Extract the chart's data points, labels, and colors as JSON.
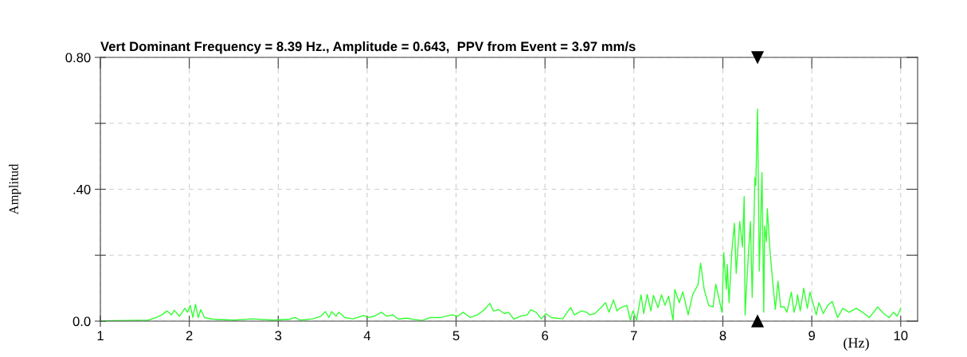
{
  "chart_data": {
    "type": "line",
    "title": "Vert Dominant Frequency = 8.39 Hz., Amplitude = 0.643,  PPV from Event = 3.97 mm/s",
    "xlabel": "(Hz)",
    "ylabel": "Amplitud",
    "series": [
      {
        "color": "#33ff33",
        "x": [
          1.0,
          1.3,
          1.54,
          1.63,
          1.69,
          1.75,
          1.8,
          1.83,
          1.89,
          1.95,
          1.98,
          2.01,
          2.04,
          2.07,
          2.1,
          2.13,
          2.17,
          2.26,
          2.5,
          2.71,
          2.95,
          3.13,
          3.19,
          3.25,
          3.39,
          3.48,
          3.53,
          3.57,
          3.6,
          3.65,
          3.68,
          3.75,
          3.84,
          3.96,
          4.02,
          4.08,
          4.16,
          4.22,
          4.29,
          4.35,
          4.44,
          4.53,
          4.62,
          4.71,
          4.83,
          4.95,
          5.02,
          5.08,
          5.16,
          5.24,
          5.32,
          5.38,
          5.42,
          5.48,
          5.54,
          5.59,
          5.65,
          5.72,
          5.8,
          5.84,
          5.9,
          5.96,
          6.01,
          6.07,
          6.2,
          6.26,
          6.29,
          6.33,
          6.41,
          6.47,
          6.5,
          6.56,
          6.63,
          6.68,
          6.72,
          6.77,
          6.81,
          6.84,
          6.92,
          6.96,
          6.99,
          7.03,
          7.08,
          7.11,
          7.15,
          7.19,
          7.22,
          7.27,
          7.31,
          7.35,
          7.39,
          7.44,
          7.46,
          7.51,
          7.55,
          7.61,
          7.66,
          7.72,
          7.75,
          7.79,
          7.84,
          7.89,
          7.92,
          7.96,
          7.99,
          8.01,
          8.04,
          8.05,
          8.07,
          8.1,
          8.13,
          8.15,
          8.19,
          8.22,
          8.24,
          8.25,
          8.28,
          8.31,
          8.33,
          8.36,
          8.37,
          8.39,
          8.41,
          8.44,
          8.46,
          8.47,
          8.49,
          8.5,
          8.53,
          8.56,
          8.59,
          8.62,
          8.65,
          8.69,
          8.72,
          8.77,
          8.8,
          8.83,
          8.84,
          8.87,
          8.91,
          8.95,
          8.98,
          9.02,
          9.05,
          9.08,
          9.13,
          9.18,
          9.23,
          9.29,
          9.35,
          9.42,
          9.5,
          9.57,
          9.65,
          9.74,
          9.81,
          9.87,
          9.92,
          9.96,
          10.0
        ],
        "values": [
          0.001,
          0.002,
          0.003,
          0.011,
          0.019,
          0.031,
          0.019,
          0.033,
          0.015,
          0.039,
          0.027,
          0.048,
          0.011,
          0.051,
          0.011,
          0.035,
          0.011,
          0.006,
          0.003,
          0.007,
          0.003,
          0.006,
          0.011,
          0.003,
          0.007,
          0.015,
          0.029,
          0.011,
          0.029,
          0.015,
          0.027,
          0.011,
          0.007,
          0.017,
          0.011,
          0.015,
          0.027,
          0.015,
          0.019,
          0.006,
          0.009,
          0.005,
          0.002,
          0.011,
          0.011,
          0.019,
          0.015,
          0.027,
          0.011,
          0.019,
          0.035,
          0.054,
          0.031,
          0.035,
          0.023,
          0.027,
          0.006,
          0.015,
          0.019,
          0.035,
          0.027,
          0.007,
          0.023,
          0.011,
          0.007,
          0.031,
          0.041,
          0.019,
          0.031,
          0.027,
          0.019,
          0.023,
          0.041,
          0.056,
          0.027,
          0.064,
          0.031,
          0.039,
          0.048,
          0.003,
          0.031,
          0.003,
          0.08,
          0.023,
          0.081,
          0.031,
          0.078,
          0.041,
          0.08,
          0.048,
          0.076,
          0.003,
          0.096,
          0.056,
          0.089,
          0.019,
          0.08,
          0.11,
          0.176,
          0.096,
          0.048,
          0.043,
          0.112,
          0.064,
          0.027,
          0.208,
          0.097,
          0.172,
          0.056,
          0.208,
          0.297,
          0.145,
          0.302,
          0.225,
          0.378,
          0.019,
          0.169,
          0.302,
          0.072,
          0.435,
          0.411,
          0.643,
          0.152,
          0.45,
          0.027,
          0.289,
          0.241,
          0.341,
          0.212,
          0.121,
          0.036,
          0.121,
          0.043,
          0.043,
          0.027,
          0.088,
          0.027,
          0.056,
          0.08,
          0.031,
          0.1,
          0.039,
          0.088,
          0.048,
          0.019,
          0.056,
          0.023,
          0.048,
          0.06,
          0.011,
          0.039,
          0.027,
          0.039,
          0.027,
          0.011,
          0.043,
          0.023,
          0.011,
          0.027,
          0.015,
          0.039
        ]
      },
      {
        "type": "scatter",
        "color": "#000000",
        "marker": "triangle",
        "x": [
          8.39
        ],
        "values": [
          0.8
        ]
      },
      {
        "type": "scatter",
        "color": "#000000",
        "marker": "triangle",
        "x": [
          8.39
        ],
        "values": [
          0
        ]
      }
    ],
    "xlim": [
      1,
      10.19
    ],
    "xticks": [
      1,
      2,
      3,
      4,
      5,
      6,
      7,
      8,
      9,
      10
    ],
    "ylim": [
      0,
      0.8
    ],
    "yticks": [
      {
        "value": 0,
        "label": "0.0"
      },
      {
        "value": 0.2,
        "label": null
      },
      {
        "value": 0.4,
        "label": ".40"
      },
      {
        "value": 0.6,
        "label": null
      },
      {
        "value": 0.8,
        "label": "0.80"
      }
    ],
    "grid": true,
    "line_style": "solid",
    "marker": "none"
  }
}
